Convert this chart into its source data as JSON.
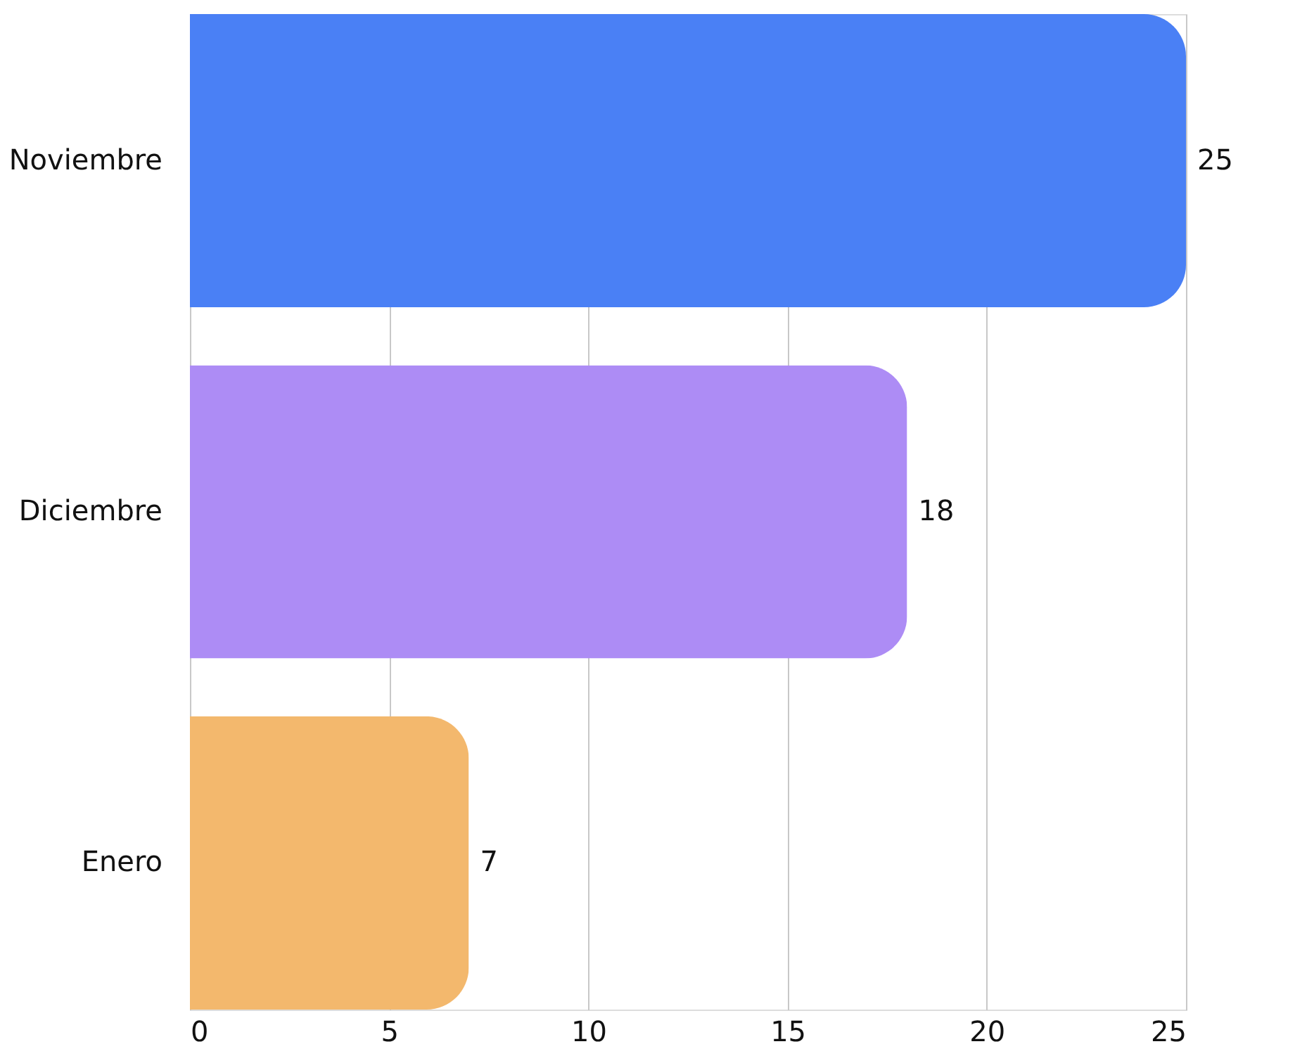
{
  "chart_data": {
    "type": "bar",
    "orientation": "horizontal",
    "categories": [
      "Noviembre",
      "Diciembre",
      "Enero"
    ],
    "values": [
      25,
      18,
      7
    ],
    "colors": [
      "#4a80f5",
      "#ad8cf5",
      "#f3b86d"
    ],
    "xlim": [
      0,
      25
    ],
    "xticks": [
      0,
      5,
      10,
      15,
      20,
      25
    ],
    "grid": "x",
    "data_labels": true,
    "legend": false
  }
}
